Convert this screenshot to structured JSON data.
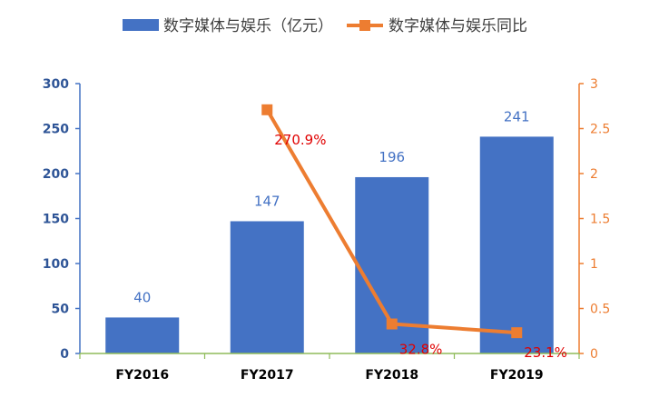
{
  "chart_data": {
    "type": "bar",
    "categories": [
      "FY2016",
      "FY2017",
      "FY2018",
      "FY2019"
    ],
    "series": [
      {
        "name": "数字媒体与娱乐（亿元）",
        "type": "bar",
        "axis": "left",
        "color": "#4472c4",
        "values": [
          40,
          147,
          196,
          241
        ],
        "labels": [
          "40",
          "147",
          "196",
          "241"
        ]
      },
      {
        "name": "数字媒体与娱乐同比",
        "type": "line",
        "axis": "right",
        "color": "#ed7d31",
        "values": [
          null,
          2.709,
          0.328,
          0.231
        ],
        "labels": [
          "",
          "270.9%",
          "32.8%",
          "23.1%"
        ]
      }
    ],
    "y_left": {
      "min": 0,
      "max": 300,
      "ticks": [
        "0",
        "50",
        "100",
        "150",
        "200",
        "250",
        "300"
      ]
    },
    "y_right": {
      "min": 0,
      "max": 3,
      "ticks": [
        "0",
        "0.5",
        "1",
        "1.5",
        "2",
        "2.5",
        "3"
      ]
    },
    "legend_position": "top",
    "grid": false
  }
}
